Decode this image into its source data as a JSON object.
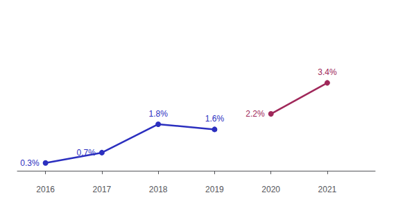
{
  "chart_data": {
    "type": "line",
    "series": [
      {
        "color": "#2B2FBF",
        "marker": "circle",
        "x": [
          2016,
          2017,
          2018,
          2019
        ],
        "values": [
          0.3,
          0.7,
          1.8,
          1.6
        ],
        "value_labels": [
          "0.3%",
          "0.7%",
          "1.8%",
          "1.6%"
        ]
      },
      {
        "color": "#A0285A",
        "marker": "circle",
        "x": [
          2020,
          2021
        ],
        "values": [
          2.2,
          3.4
        ],
        "value_labels": [
          "2.2%",
          "3.4%"
        ]
      }
    ],
    "xlim": [
      2015.5,
      2021.85
    ],
    "xticks": [
      2016,
      2017,
      2018,
      2019,
      2020,
      2021
    ],
    "ylim": [
      -0.35,
      5.8
    ],
    "data_labels": true,
    "grid": false,
    "tick_labels": "x"
  }
}
